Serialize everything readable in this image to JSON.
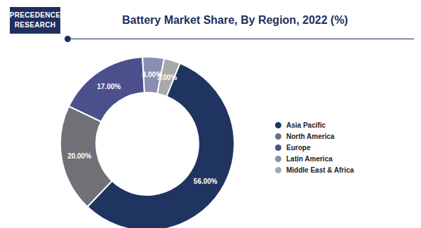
{
  "logo": [
    "PRECEDENCE",
    "RESEARCH"
  ],
  "chart_data": {
    "type": "pie",
    "title": "Battery Market Share, By Region, 2022 (%)",
    "categories": [
      "Asia Pacific",
      "North America",
      "Europe",
      "Latin America",
      "Middle East & Africa"
    ],
    "values": [
      56,
      20,
      17,
      4,
      3
    ],
    "value_labels": [
      "56.00%",
      "20.00%",
      "17.00%",
      "4.00%",
      "3.00%"
    ],
    "colors": [
      "#1f3461",
      "#6f7176",
      "#4b508c",
      "#8a8eb0",
      "#a8a8aa"
    ],
    "data_labels": true,
    "legend": "right"
  }
}
